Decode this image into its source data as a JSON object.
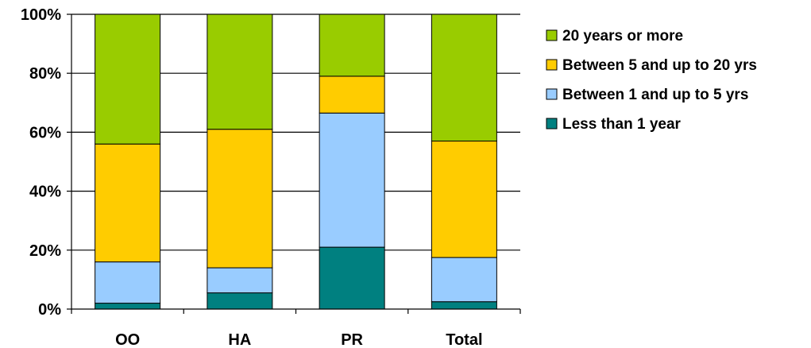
{
  "chart_data": {
    "type": "bar",
    "stacked": true,
    "categories": [
      "OO",
      "HA",
      "PR",
      "Total"
    ],
    "y_tick_labels": [
      "0%",
      "20%",
      "40%",
      "60%",
      "80%",
      "100%"
    ],
    "ylim": [
      0,
      100
    ],
    "grid": true,
    "legend_position": "right",
    "series": [
      {
        "name": "Less than 1 year",
        "color": "#008080",
        "values": [
          2,
          5.5,
          21,
          2.5
        ]
      },
      {
        "name": "Between 1 and up to 5 yrs",
        "color": "#99ccff",
        "values": [
          14,
          8.5,
          45.5,
          15
        ]
      },
      {
        "name": "Between 5 and up to 20 yrs",
        "color": "#ffcc00",
        "values": [
          40,
          47,
          12.5,
          39.5
        ]
      },
      {
        "name": "20 years or more",
        "color": "#99cc00",
        "values": [
          44,
          39,
          21,
          43
        ]
      }
    ],
    "legend_order": [
      "20 years or more",
      "Between 5 and up to 20 yrs",
      "Between 1 and up to 5 yrs",
      "Less than 1 year"
    ]
  }
}
